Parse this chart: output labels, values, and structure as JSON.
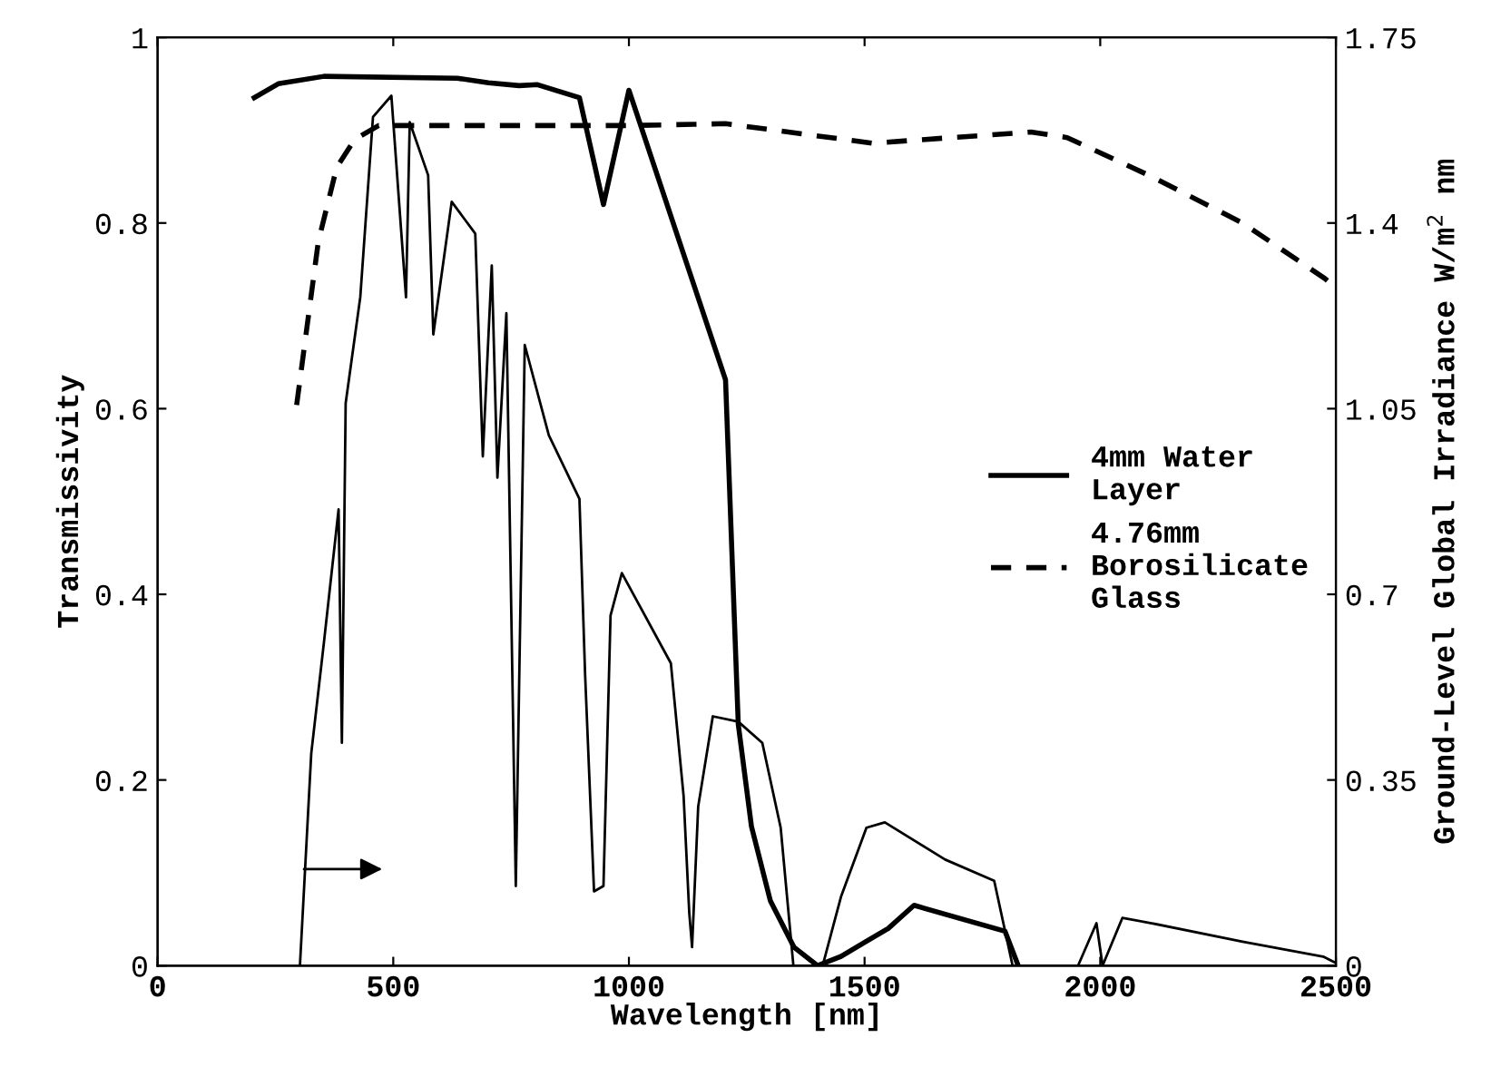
{
  "chart_data": {
    "type": "line",
    "xlabel": "Wavelength [nm]",
    "ylabel": "Transmissivity",
    "y2label": "Ground-Level Global Irradiance W/m$^{2}$ nm",
    "xlim": [
      0,
      2500
    ],
    "xticks": [
      0,
      500,
      1000,
      1500,
      2000,
      2500
    ],
    "ylim": [
      0,
      1
    ],
    "yticks": [
      0,
      0.2,
      0.4,
      0.6,
      0.8,
      1
    ],
    "y2lim": [
      0,
      1.75
    ],
    "y2ticks": [
      0,
      0.35,
      0.7,
      1.05,
      1.4,
      1.75
    ],
    "grid": false,
    "legend": "right",
    "marker": "none",
    "series": [
      {
        "name": "4mm Water\nLayer",
        "color": "#000000",
        "line_style": "solid",
        "x": [
          205,
          256,
          353,
          636,
          702,
          767,
          806,
          895,
          946,
          1000,
          1205,
          1232,
          1260,
          1300,
          1350,
          1400,
          1450,
          1500,
          1550,
          1605,
          1798,
          1826
        ],
        "values": [
          0.935,
          0.95,
          0.958,
          0.956,
          0.951,
          0.948,
          0.949,
          0.935,
          0.82,
          0.943,
          0.631,
          0.26,
          0.15,
          0.07,
          0.02,
          0.0,
          0.01,
          0.025,
          0.04,
          0.065,
          0.037,
          0.0
        ]
      },
      {
        "name": "4.76mm\nBorosilicate\nGlass",
        "color": "#000000",
        "line_style": "dashed",
        "x": [
          295,
          341,
          380,
          418,
          469,
          1000,
          1205,
          1516,
          1853,
          1930,
          2109,
          2302,
          2477,
          2500
        ],
        "values": [
          0.604,
          0.78,
          0.86,
          0.89,
          0.905,
          0.905,
          0.907,
          0.886,
          0.898,
          0.892,
          0.85,
          0.8,
          0.74,
          0.73
        ]
      },
      {
        "color": "#000000",
        "line_style": "solid",
        "axis": "y2",
        "x": [
          302,
          326,
          353,
          384,
          391,
          399,
          430,
          457,
          496,
          527,
          535,
          574,
          585,
          624,
          674,
          690,
          709,
          721,
          740,
          760,
          779,
          830,
          895,
          907,
          926,
          946,
          961,
          985,
          1089,
          1116,
          1128,
          1134,
          1147,
          1178,
          1232,
          1283,
          1322,
          1349,
          1411,
          1450,
          1504,
          1543,
          1671,
          1775,
          1814,
          1953,
          1992,
          2005,
          2047,
          2109,
          2302,
          2473,
          2500
        ],
        "values": [
          0,
          0.4,
          0.61,
          0.86,
          0.42,
          1.06,
          1.26,
          1.6,
          1.64,
          1.26,
          1.59,
          1.49,
          1.19,
          1.44,
          1.38,
          0.96,
          1.32,
          0.92,
          1.23,
          0.15,
          1.17,
          1.0,
          0.88,
          0.55,
          0.14,
          0.15,
          0.66,
          0.74,
          0.57,
          0.32,
          0.1,
          0.035,
          0.3,
          0.47,
          0.46,
          0.42,
          0.26,
          0,
          0,
          0.13,
          0.26,
          0.27,
          0.2,
          0.16,
          0,
          0,
          0.08,
          0,
          0.09,
          0.08,
          0.045,
          0.017,
          0.005
        ]
      }
    ]
  }
}
